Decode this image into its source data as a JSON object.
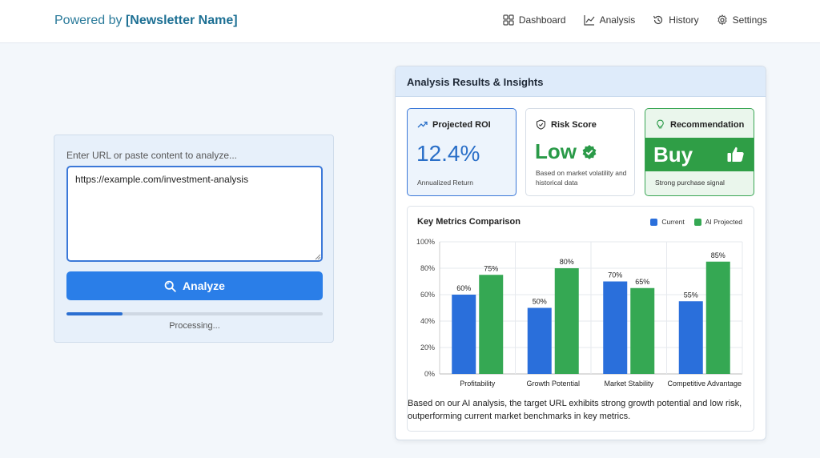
{
  "header": {
    "brand_prefix": "Powered by ",
    "brand_name": "[Newsletter Name]",
    "nav": [
      {
        "label": "Dashboard",
        "icon": "grid-icon"
      },
      {
        "label": "Analysis",
        "icon": "line-chart-icon"
      },
      {
        "label": "History",
        "icon": "history-icon"
      },
      {
        "label": "Settings",
        "icon": "gear-icon"
      }
    ]
  },
  "input": {
    "label": "Enter URL or paste content to analyze...",
    "value": "https://example.com/investment-analysis",
    "button_label": "Analyze",
    "progress_fraction": 0.22,
    "progress_text": "Processing..."
  },
  "results": {
    "title": "Analysis Results & Insights",
    "roi": {
      "title": "Projected ROI",
      "value": "12.4%",
      "sub": "Annualized Return"
    },
    "risk": {
      "title": "Risk Score",
      "value": "Low",
      "desc": "Based on market volatility and historical data"
    },
    "recommendation": {
      "title": "Recommendation",
      "value": "Buy",
      "sub": "Strong purchase signal"
    },
    "summary": "Based on our AI analysis, the target URL exhibits strong growth potential and low risk, outperforming current market benchmarks in key metrics."
  },
  "colors": {
    "accent": "#2a7ee8",
    "current": "#2a6fdb",
    "projected": "#35a853"
  },
  "chart_data": {
    "type": "bar",
    "title": "Key Metrics Comparison",
    "categories": [
      "Profitability",
      "Growth Potential",
      "Market Stability",
      "Competitive Advantage"
    ],
    "series": [
      {
        "name": "Current",
        "values": [
          60,
          50,
          70,
          55
        ]
      },
      {
        "name": "AI Projected",
        "values": [
          75,
          80,
          65,
          85
        ]
      }
    ],
    "ylim": [
      0,
      100
    ],
    "yticks": [
      "0%",
      "20%",
      "40%",
      "60%",
      "80%",
      "100%"
    ],
    "legend_position": "top-right",
    "grid": true
  }
}
